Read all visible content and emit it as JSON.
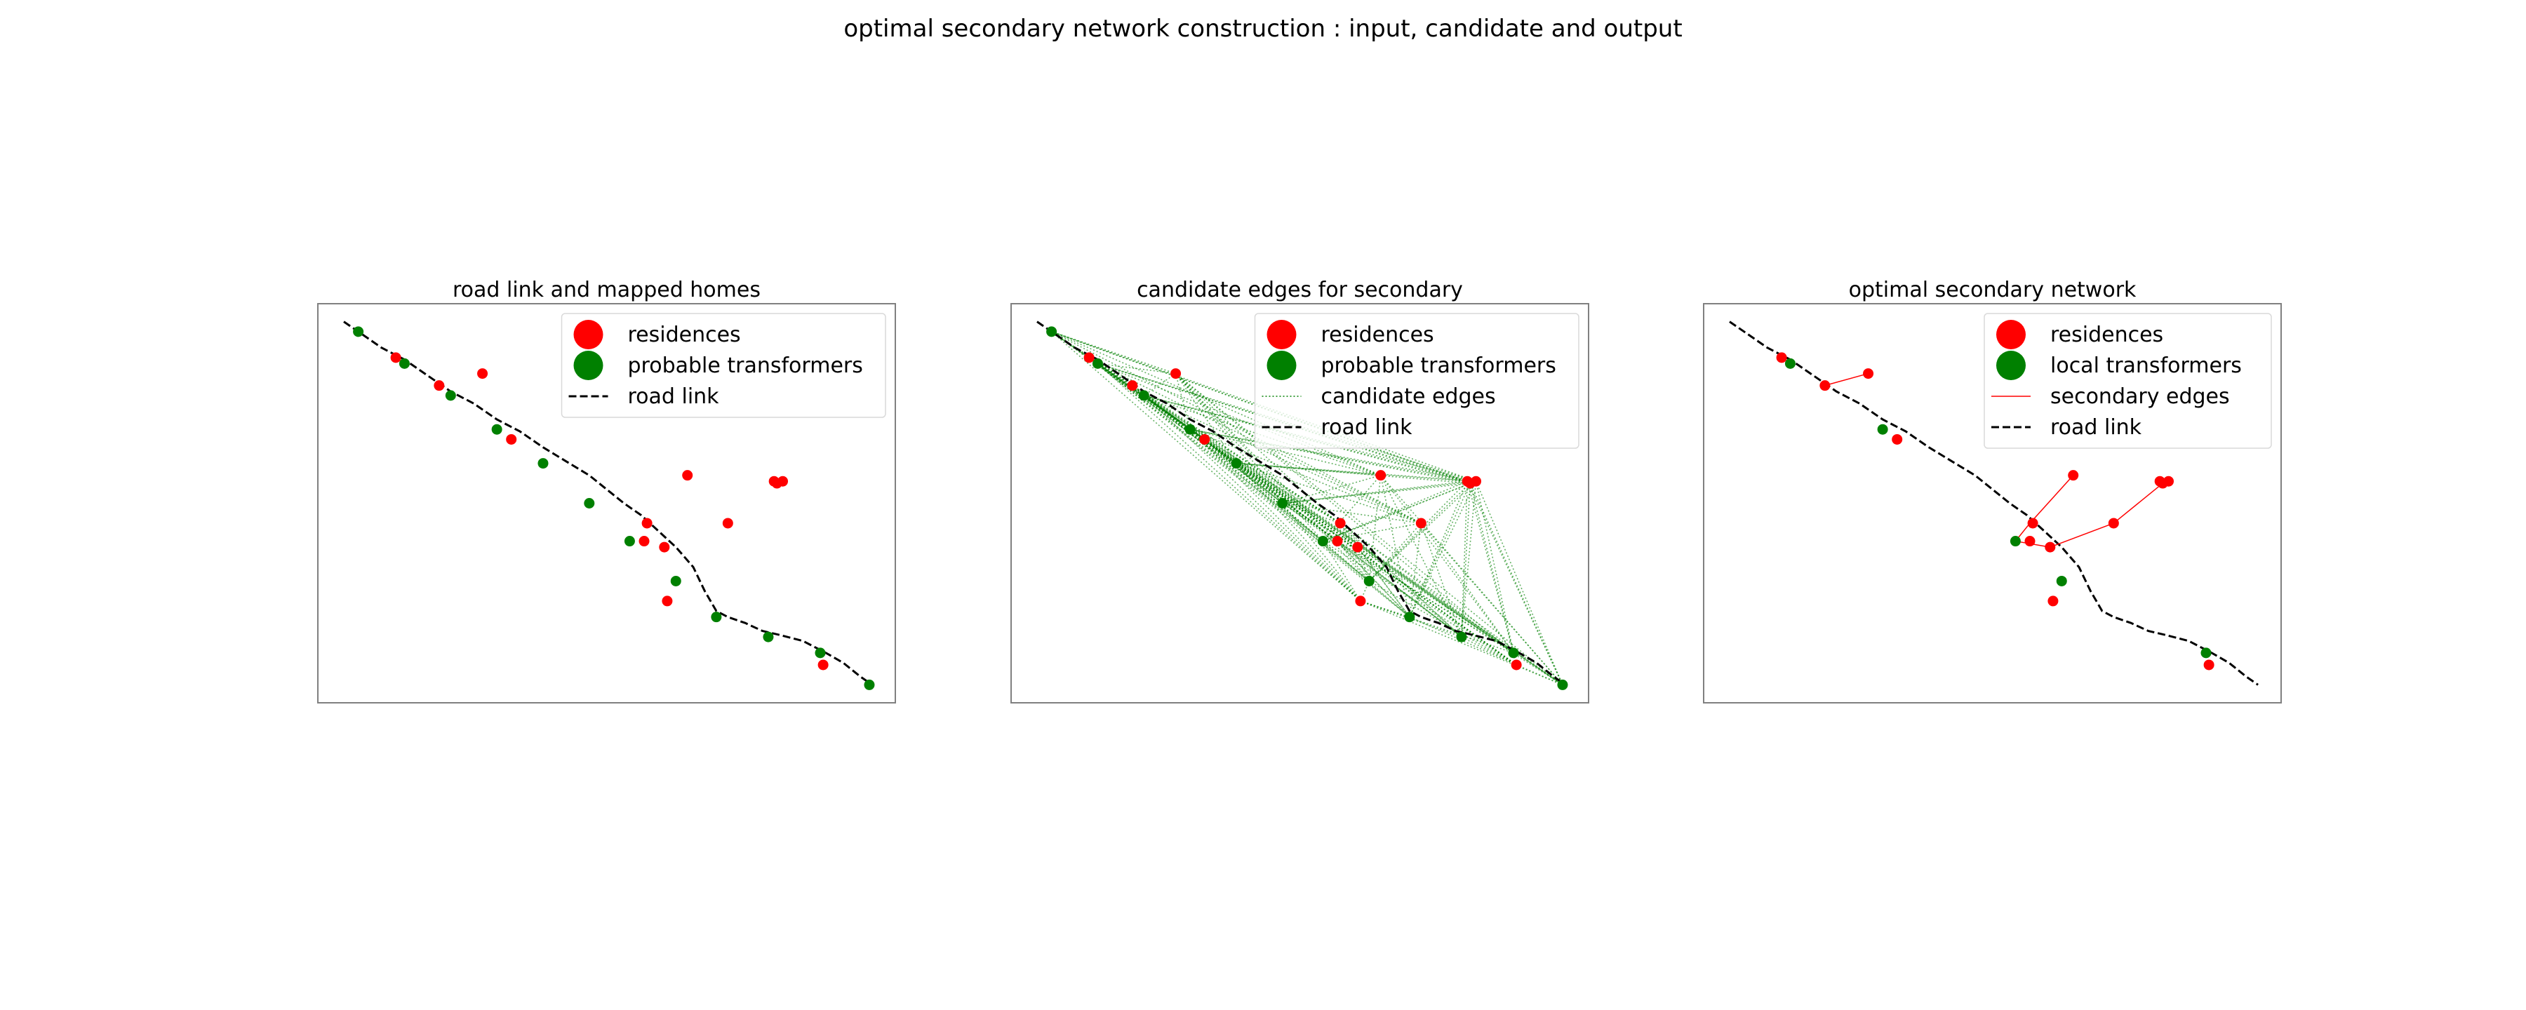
{
  "figure_title": "optimal secondary network construction : input, candidate and output",
  "colors": {
    "residence": "#ff0000",
    "transformer": "#008000",
    "road": "#000000",
    "candidate_edge": "#008000",
    "secondary_edge": "#ff0000"
  },
  "chart_data": [
    {
      "type": "scatter",
      "title": "road link and mapped homes",
      "xlim": [
        0,
        100
      ],
      "ylim": [
        0,
        100
      ],
      "axes_visible": false,
      "grid": false,
      "legend_position": "upper right",
      "legend": [
        "residences",
        "probable transformers",
        "road link"
      ],
      "road_link": {
        "name": "road link",
        "style": "dashed",
        "x": [
          4.5,
          7,
          11,
          15,
          19,
          23,
          27,
          31,
          35,
          39,
          43,
          47,
          50,
          53,
          56,
          59,
          62,
          65,
          67,
          69,
          71,
          74,
          77,
          80,
          84,
          88,
          91,
          94,
          96
        ],
        "y": [
          95.5,
          93,
          89,
          86,
          82,
          78,
          75,
          71,
          68,
          64,
          60.5,
          57,
          53.5,
          50,
          47,
          43,
          39,
          34,
          28,
          23,
          21.5,
          20,
          18,
          17,
          15.5,
          12.5,
          10,
          6.5,
          4.5
        ]
      },
      "residences": {
        "name": "residences",
        "x": [
          13.5,
          21,
          28.5,
          33.5,
          64,
          57,
          56.5,
          60,
          71,
          79,
          79.5,
          80.5,
          60.5,
          87.5
        ],
        "y": [
          86.5,
          79.5,
          82.5,
          66,
          57,
          45,
          40.5,
          39,
          45,
          55.5,
          55,
          55.5,
          25.5,
          9.5
        ]
      },
      "transformers": {
        "name": "probable transformers",
        "x": [
          7,
          15,
          23,
          31,
          39,
          47,
          54,
          62,
          69,
          78,
          87,
          95.5
        ],
        "y": [
          93,
          85,
          77,
          68.5,
          60,
          50,
          40.5,
          30.5,
          21.5,
          16.5,
          12.5,
          4.5
        ]
      }
    },
    {
      "type": "scatter",
      "title": "candidate edges for secondary",
      "xlim": [
        0,
        100
      ],
      "ylim": [
        0,
        100
      ],
      "axes_visible": false,
      "grid": false,
      "legend_position": "upper right",
      "legend": [
        "residences",
        "probable transformers",
        "candidate edges",
        "road link"
      ],
      "road_link": {
        "name": "road link",
        "style": "dashed",
        "x": [
          4.5,
          7,
          11,
          15,
          19,
          23,
          27,
          31,
          35,
          39,
          43,
          47,
          50,
          53,
          56,
          59,
          62,
          65,
          67,
          69,
          71,
          74,
          77,
          80,
          84,
          88,
          91,
          94,
          96
        ],
        "y": [
          95.5,
          93,
          89,
          86,
          82,
          78,
          75,
          71,
          68,
          64,
          60.5,
          57,
          53.5,
          50,
          47,
          43,
          39,
          34,
          28,
          23,
          21.5,
          20,
          18,
          17,
          15.5,
          12.5,
          10,
          6.5,
          4.5
        ]
      },
      "residences": {
        "name": "residences",
        "x": [
          13.5,
          21,
          28.5,
          33.5,
          64,
          57,
          56.5,
          60,
          71,
          79,
          79.5,
          80.5,
          60.5,
          87.5
        ],
        "y": [
          86.5,
          79.5,
          82.5,
          66,
          57,
          45,
          40.5,
          39,
          45,
          55.5,
          55,
          55.5,
          25.5,
          9.5
        ]
      },
      "transformers": {
        "name": "probable transformers",
        "x": [
          7,
          15,
          23,
          31,
          39,
          47,
          54,
          62,
          69,
          78,
          87,
          95.5
        ],
        "y": [
          93,
          85,
          77,
          68.5,
          60,
          50,
          40.5,
          30.5,
          21.5,
          16.5,
          12.5,
          4.5
        ]
      },
      "candidate_edges": {
        "name": "candidate edges",
        "style": "dotted",
        "between": "all residences and all probable transformers"
      }
    },
    {
      "type": "scatter",
      "title": "optimal secondary network",
      "xlim": [
        0,
        100
      ],
      "ylim": [
        0,
        100
      ],
      "axes_visible": false,
      "grid": false,
      "legend_position": "upper right",
      "legend": [
        "residences",
        "local transformers",
        "secondary edges",
        "road link"
      ],
      "road_link": {
        "name": "road link",
        "style": "dashed",
        "x": [
          4.5,
          7,
          11,
          15,
          19,
          23,
          27,
          31,
          35,
          39,
          43,
          47,
          50,
          53,
          56,
          59,
          62,
          65,
          67,
          69,
          71,
          74,
          77,
          80,
          84,
          88,
          91,
          94,
          96
        ],
        "y": [
          95.5,
          93,
          89,
          86,
          82,
          78,
          75,
          71,
          68,
          64,
          60.5,
          57,
          53.5,
          50,
          47,
          43,
          39,
          34,
          28,
          23,
          21.5,
          20,
          18,
          17,
          15.5,
          12.5,
          10,
          6.5,
          4.5
        ]
      },
      "residences": {
        "name": "residences",
        "x": [
          13.5,
          21,
          28.5,
          33.5,
          64,
          57,
          56.5,
          60,
          71,
          79,
          79.5,
          80.5,
          60.5,
          87.5
        ],
        "y": [
          86.5,
          79.5,
          82.5,
          66,
          57,
          45,
          40.5,
          39,
          45,
          55.5,
          55,
          55.5,
          25.5,
          9.5
        ]
      },
      "transformers": {
        "name": "local transformers",
        "x": [
          15,
          31,
          54,
          62,
          87
        ],
        "y": [
          85,
          68.5,
          40.5,
          30.5,
          12.5
        ]
      },
      "secondary_edges": {
        "name": "secondary edges",
        "segments": [
          [
            [
              21,
              79.5
            ],
            [
              28.5,
              82.5
            ]
          ],
          [
            [
              54,
              40.5
            ],
            [
              56.5,
              45
            ]
          ],
          [
            [
              56.5,
              45
            ],
            [
              64,
              57
            ]
          ],
          [
            [
              54,
              40.5
            ],
            [
              60,
              39
            ]
          ],
          [
            [
              60,
              39
            ],
            [
              71,
              45
            ]
          ],
          [
            [
              71,
              45
            ],
            [
              79.5,
              55
            ]
          ]
        ]
      }
    }
  ]
}
